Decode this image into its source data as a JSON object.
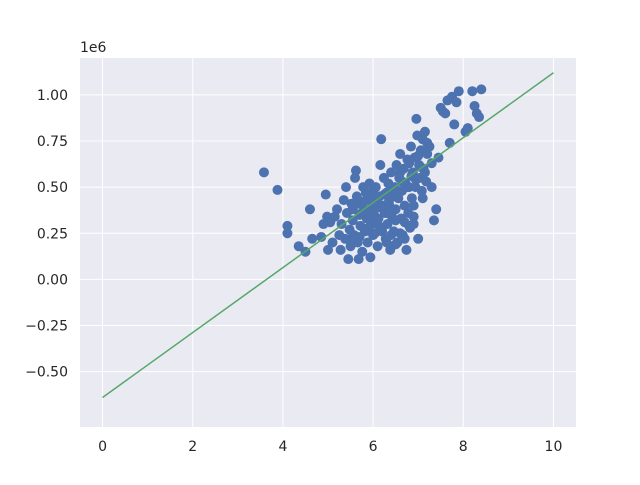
{
  "chart_data": {
    "type": "scatter",
    "title": "",
    "xlabel": "",
    "ylabel": "",
    "xlim": [
      -0.5,
      10.5
    ],
    "ylim": [
      -0.8,
      1.2
    ],
    "y_offset_label": "1e6",
    "x_ticks": [
      0,
      2,
      4,
      6,
      8,
      10
    ],
    "x_tick_labels": [
      "0",
      "2",
      "4",
      "6",
      "8",
      "10"
    ],
    "y_ticks": [
      -0.5,
      -0.25,
      0.0,
      0.25,
      0.5,
      0.75,
      1.0
    ],
    "y_tick_labels": [
      "−0.50",
      "−0.25",
      "0.00",
      "0.25",
      "0.50",
      "0.75",
      "1.00"
    ],
    "grid": true,
    "background_color": "#eaeaf2",
    "grid_color": "#ffffff",
    "series": [
      {
        "type": "scatter",
        "color": "#4c72b0",
        "points": [
          [
            3.58,
            0.58
          ],
          [
            3.88,
            0.485
          ],
          [
            4.1,
            0.29
          ],
          [
            4.1,
            0.25
          ],
          [
            4.35,
            0.18
          ],
          [
            4.5,
            0.15
          ],
          [
            4.6,
            0.38
          ],
          [
            4.65,
            0.22
          ],
          [
            4.85,
            0.23
          ],
          [
            4.9,
            0.3
          ],
          [
            4.95,
            0.46
          ],
          [
            4.98,
            0.34
          ],
          [
            5.0,
            0.16
          ],
          [
            5.05,
            0.31
          ],
          [
            5.1,
            0.2
          ],
          [
            5.15,
            0.34
          ],
          [
            5.2,
            0.38
          ],
          [
            5.25,
            0.24
          ],
          [
            5.28,
            0.16
          ],
          [
            5.3,
            0.3
          ],
          [
            5.35,
            0.43
          ],
          [
            5.38,
            0.22
          ],
          [
            5.4,
            0.5
          ],
          [
            5.42,
            0.36
          ],
          [
            5.45,
            0.11
          ],
          [
            5.48,
            0.27
          ],
          [
            5.5,
            0.18
          ],
          [
            5.52,
            0.41
          ],
          [
            5.55,
            0.32
          ],
          [
            5.58,
            0.24
          ],
          [
            5.6,
            0.55
          ],
          [
            5.62,
            0.59
          ],
          [
            5.64,
            0.45
          ],
          [
            5.66,
            0.2
          ],
          [
            5.68,
            0.11
          ],
          [
            5.7,
            0.35
          ],
          [
            5.72,
            0.29
          ],
          [
            5.74,
            0.42
          ],
          [
            5.76,
            0.15
          ],
          [
            5.78,
            0.5
          ],
          [
            5.8,
            0.38
          ],
          [
            5.82,
            0.26
          ],
          [
            5.84,
            0.47
          ],
          [
            5.86,
            0.33
          ],
          [
            5.88,
            0.2
          ],
          [
            5.9,
            0.44
          ],
          [
            5.92,
            0.52
          ],
          [
            5.94,
            0.12
          ],
          [
            5.96,
            0.3
          ],
          [
            5.98,
            0.4
          ],
          [
            6.0,
            0.48
          ],
          [
            6.02,
            0.35
          ],
          [
            6.04,
            0.25
          ],
          [
            6.06,
            0.5
          ],
          [
            6.08,
            0.42
          ],
          [
            6.1,
            0.18
          ],
          [
            6.12,
            0.33
          ],
          [
            6.14,
            0.45
          ],
          [
            6.16,
            0.62
          ],
          [
            6.18,
            0.76
          ],
          [
            6.2,
            0.28
          ],
          [
            6.22,
            0.4
          ],
          [
            6.24,
            0.55
          ],
          [
            6.26,
            0.36
          ],
          [
            6.28,
            0.22
          ],
          [
            6.3,
            0.47
          ],
          [
            6.32,
            0.3
          ],
          [
            6.34,
            0.52
          ],
          [
            6.36,
            0.4
          ],
          [
            6.38,
            0.16
          ],
          [
            6.4,
            0.58
          ],
          [
            6.42,
            0.34
          ],
          [
            6.44,
            0.45
          ],
          [
            6.46,
            0.26
          ],
          [
            6.48,
            0.5
          ],
          [
            6.5,
            0.38
          ],
          [
            6.52,
            0.62
          ],
          [
            6.54,
            0.2
          ],
          [
            6.56,
            0.44
          ],
          [
            6.58,
            0.55
          ],
          [
            6.6,
            0.68
          ],
          [
            6.62,
            0.33
          ],
          [
            6.64,
            0.48
          ],
          [
            6.66,
            0.24
          ],
          [
            6.68,
            0.6
          ],
          [
            6.7,
            0.4
          ],
          [
            6.72,
            0.52
          ],
          [
            6.74,
            0.16
          ],
          [
            6.76,
            0.65
          ],
          [
            6.78,
            0.36
          ],
          [
            6.8,
            0.5
          ],
          [
            6.82,
            0.28
          ],
          [
            6.84,
            0.72
          ],
          [
            6.86,
            0.44
          ],
          [
            6.88,
            0.58
          ],
          [
            6.9,
            0.3
          ],
          [
            6.92,
            0.66
          ],
          [
            6.94,
            0.5
          ],
          [
            6.96,
            0.87
          ],
          [
            6.98,
            0.78
          ],
          [
            7.0,
            0.22
          ],
          [
            7.02,
            0.62
          ],
          [
            7.04,
            0.55
          ],
          [
            7.06,
            0.7
          ],
          [
            7.08,
            0.48
          ],
          [
            7.1,
            0.76
          ],
          [
            7.12,
            0.6
          ],
          [
            7.15,
            0.8
          ],
          [
            7.18,
            0.53
          ],
          [
            7.2,
            0.68
          ],
          [
            7.25,
            0.72
          ],
          [
            7.3,
            0.63
          ],
          [
            7.35,
            0.32
          ],
          [
            7.4,
            0.38
          ],
          [
            7.45,
            0.66
          ],
          [
            7.5,
            0.93
          ],
          [
            7.55,
            0.91
          ],
          [
            7.6,
            0.9
          ],
          [
            7.65,
            0.97
          ],
          [
            7.7,
            0.74
          ],
          [
            7.75,
            0.99
          ],
          [
            7.8,
            0.84
          ],
          [
            7.85,
            0.96
          ],
          [
            7.9,
            1.02
          ],
          [
            8.05,
            0.8
          ],
          [
            8.1,
            0.82
          ],
          [
            8.2,
            1.02
          ],
          [
            8.25,
            0.94
          ],
          [
            8.3,
            0.9
          ],
          [
            8.35,
            0.88
          ],
          [
            8.4,
            1.03
          ],
          [
            5.55,
            0.38
          ],
          [
            5.65,
            0.41
          ],
          [
            5.75,
            0.36
          ],
          [
            5.85,
            0.43
          ],
          [
            5.95,
            0.37
          ],
          [
            6.05,
            0.44
          ],
          [
            6.15,
            0.39
          ],
          [
            6.25,
            0.46
          ],
          [
            6.35,
            0.42
          ],
          [
            6.45,
            0.49
          ],
          [
            6.55,
            0.47
          ],
          [
            6.65,
            0.53
          ],
          [
            6.75,
            0.5
          ],
          [
            6.85,
            0.56
          ],
          [
            6.95,
            0.54
          ],
          [
            7.05,
            0.61
          ],
          [
            7.15,
            0.58
          ],
          [
            5.9,
            0.28
          ],
          [
            6.0,
            0.24
          ],
          [
            6.1,
            0.3
          ],
          [
            6.2,
            0.26
          ],
          [
            6.3,
            0.2
          ],
          [
            6.4,
            0.24
          ],
          [
            6.5,
            0.19
          ],
          [
            6.6,
            0.25
          ],
          [
            6.7,
            0.22
          ],
          [
            6.8,
            0.29
          ],
          [
            6.9,
            0.34
          ],
          [
            5.7,
            0.23
          ],
          [
            5.5,
            0.22
          ],
          [
            6.3,
            0.36
          ],
          [
            6.5,
            0.32
          ],
          [
            6.7,
            0.31
          ],
          [
            6.9,
            0.4
          ],
          [
            7.1,
            0.44
          ],
          [
            7.3,
            0.5
          ],
          [
            6.6,
            0.58
          ],
          [
            6.8,
            0.63
          ],
          [
            7.0,
            0.67
          ],
          [
            7.2,
            0.74
          ]
        ]
      },
      {
        "type": "line",
        "color": "#55a868",
        "points": [
          [
            0,
            -0.64
          ],
          [
            10,
            1.12
          ]
        ]
      }
    ]
  }
}
